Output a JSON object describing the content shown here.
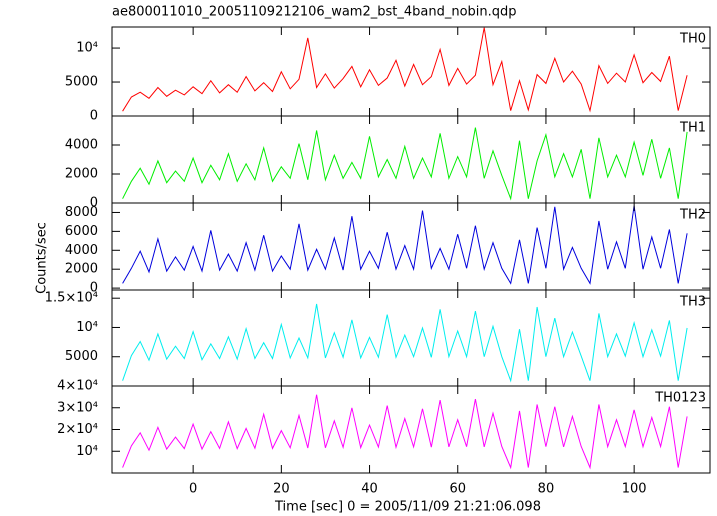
{
  "chart_data": {
    "type": "line",
    "title": "ae800011010_20051109212106_wam2_bst_4band_nobin.qdp",
    "xlabel": "Time [sec] 0 = 2005/11/09 21:21:06.098",
    "ylabel": "Counts/sec",
    "xlim": [
      -18.4,
      117.2
    ],
    "xticks": [
      0,
      20,
      40,
      60,
      80,
      100
    ],
    "x": [
      -16,
      -14,
      -12,
      -10,
      -8,
      -6,
      -4,
      -2,
      0,
      2,
      4,
      6,
      8,
      10,
      12,
      14,
      16,
      18,
      20,
      22,
      24,
      26,
      28,
      30,
      32,
      34,
      36,
      38,
      40,
      42,
      44,
      46,
      48,
      50,
      52,
      54,
      56,
      58,
      60,
      62,
      64,
      66,
      68,
      70,
      72,
      74,
      76,
      78,
      80,
      82,
      84,
      86,
      88,
      90,
      92,
      94,
      96,
      98,
      100,
      102,
      104,
      106,
      108,
      110,
      112
    ],
    "series": [
      {
        "name": "TH0",
        "color": "#ff0000",
        "ylim": [
          0,
          13100
        ],
        "yticks": [
          0,
          5000,
          {
            "value": 10000,
            "label": "10⁴"
          }
        ],
        "values": [
          700,
          2800,
          3500,
          2600,
          4200,
          2900,
          3800,
          3100,
          4300,
          3300,
          5200,
          3400,
          4600,
          3500,
          5800,
          3700,
          4900,
          3600,
          6500,
          4000,
          5400,
          11500,
          4200,
          6200,
          4100,
          5500,
          7300,
          4300,
          6800,
          4500,
          5600,
          8200,
          4400,
          7600,
          4600,
          5800,
          9800,
          4500,
          7000,
          4700,
          6000,
          13000,
          4600,
          8000,
          800,
          5200,
          900,
          6100,
          4800,
          8500,
          5000,
          6600,
          4700,
          800,
          7400,
          4800,
          6300,
          5000,
          9000,
          4900,
          6400,
          5100,
          8800,
          800,
          6000
        ]
      },
      {
        "name": "TH1",
        "color": "#00ee00",
        "ylim": [
          0,
          6000
        ],
        "yticks": [
          0,
          2000,
          4000
        ],
        "values": [
          300,
          1500,
          2400,
          1300,
          2900,
          1400,
          2200,
          1500,
          3100,
          1400,
          2600,
          1600,
          3400,
          1500,
          2700,
          1600,
          3800,
          1500,
          2500,
          1700,
          4100,
          1600,
          5000,
          1600,
          3300,
          1700,
          2800,
          1700,
          4600,
          1800,
          3000,
          1700,
          3900,
          1700,
          3100,
          1800,
          4800,
          1700,
          3200,
          1800,
          5200,
          1700,
          3600,
          1900,
          300,
          4300,
          300,
          2900,
          4700,
          1800,
          3400,
          1800,
          3700,
          300,
          4500,
          1800,
          3300,
          1800,
          4200,
          1900,
          4400,
          1700,
          3800,
          300,
          4900
        ]
      },
      {
        "name": "TH2",
        "color": "#0000dd",
        "ylim": [
          -200,
          9000
        ],
        "yticks": [
          0,
          2000,
          4000,
          6000,
          8000
        ],
        "values": [
          500,
          2100,
          3900,
          1700,
          5200,
          1800,
          3300,
          1900,
          4400,
          1800,
          6100,
          1900,
          3600,
          1800,
          4800,
          1900,
          5600,
          1800,
          3400,
          2000,
          6800,
          1900,
          4100,
          2000,
          5300,
          1900,
          7600,
          2000,
          3900,
          2100,
          5900,
          2000,
          4500,
          2000,
          8200,
          2100,
          4200,
          2000,
          5700,
          2100,
          6600,
          2000,
          4800,
          2100,
          500,
          5100,
          500,
          6400,
          2100,
          8600,
          2000,
          4300,
          2100,
          500,
          7100,
          2000,
          4900,
          2100,
          8700,
          2000,
          5400,
          2100,
          6200,
          500,
          5800
        ]
      },
      {
        "name": "TH3",
        "color": "#00eeee",
        "ylim": [
          0,
          16400
        ],
        "yticks": [
          5000,
          {
            "value": 10000,
            "label": "10⁴"
          },
          {
            "value": 15000,
            "label": "1.5×10⁴"
          }
        ],
        "values": [
          900,
          5200,
          7600,
          4400,
          8900,
          4600,
          6800,
          4700,
          9300,
          4500,
          7200,
          4700,
          8400,
          4600,
          9800,
          4700,
          7400,
          4700,
          10500,
          4800,
          8200,
          4800,
          14000,
          4800,
          9100,
          4900,
          11300,
          4800,
          8300,
          4900,
          12200,
          4900,
          8700,
          5000,
          9900,
          4900,
          13100,
          5000,
          9400,
          5000,
          12800,
          5000,
          10200,
          5000,
          900,
          9700,
          900,
          13500,
          5000,
          11600,
          5000,
          9200,
          5100,
          900,
          12400,
          5000,
          8900,
          5100,
          10800,
          5000,
          9600,
          5100,
          11200,
          900,
          9900
        ]
      },
      {
        "name": "TH0123",
        "color": "#ff00ff",
        "ylim": [
          0,
          40000
        ],
        "yticks": [
          {
            "value": 10000,
            "label": "10⁴"
          },
          {
            "value": 20000,
            "label": "2×10⁴"
          },
          {
            "value": 30000,
            "label": "3×10⁴"
          },
          {
            "value": 40000,
            "label": "4×10⁴"
          }
        ],
        "values": [
          2500,
          12500,
          18500,
          10500,
          21000,
          11000,
          16500,
          11200,
          22500,
          11000,
          19000,
          11300,
          23500,
          11200,
          20500,
          11400,
          27000,
          11300,
          19500,
          11600,
          26500,
          11500,
          36000,
          11600,
          24000,
          11800,
          30000,
          11700,
          22000,
          11900,
          31000,
          11800,
          25000,
          12000,
          29500,
          11900,
          33500,
          12000,
          24500,
          12100,
          34000,
          12000,
          27500,
          12200,
          2500,
          28500,
          2500,
          31500,
          12100,
          30500,
          12000,
          26000,
          12200,
          2500,
          31500,
          12100,
          24500,
          12200,
          29000,
          12100,
          25500,
          12200,
          30500,
          2500,
          26000
        ]
      }
    ]
  }
}
